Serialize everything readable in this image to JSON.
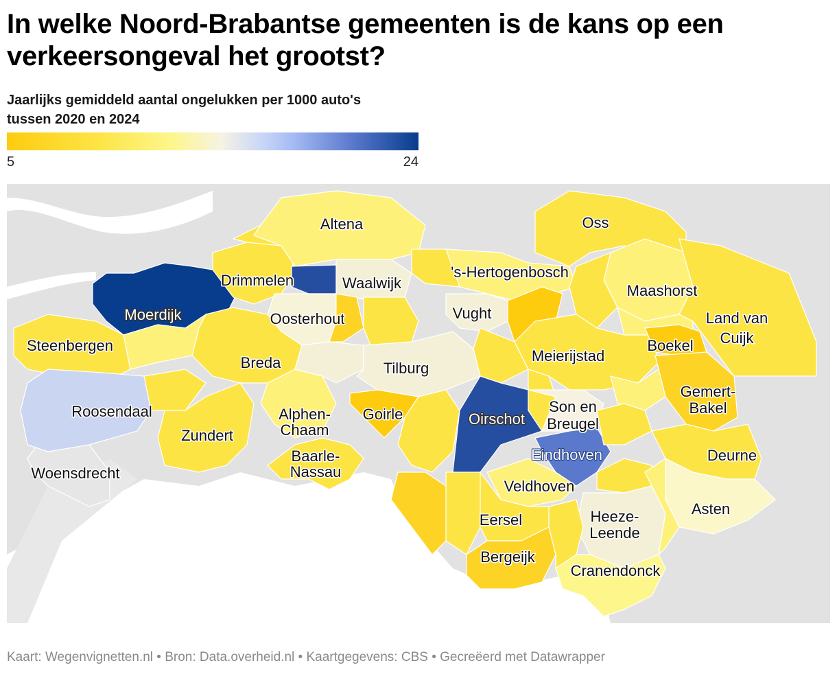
{
  "title": "In welke Noord-Brabantse gemeenten is de kans op een verkeersongeval het grootst?",
  "subtitle_line1": "Jaarlijks gemiddeld aantal ongelukken per 1000 auto's",
  "subtitle_line2": "tussen 2020 en 2024",
  "legend": {
    "min": "5",
    "max": "24"
  },
  "footer": "Kaart: Wegenvignetten.nl • Bron: Data.overheid.nl • Kaartgegevens: CBS • Gecreëerd met Datawrapper",
  "colors": {
    "very_low": "#fdcc0f",
    "low": "#fde445",
    "mid_low": "#fdf68b",
    "neutral": "#f6f3e3",
    "mid_high": "#c9d6f7",
    "high": "#5a78cc",
    "very_high": "#073d8c",
    "background_land": "#e2e2e2"
  },
  "municipalities": {
    "altena": "Altena",
    "drimmelen": "Drimmelen",
    "waalwijk": "Waalwijk",
    "hertogenbosch": "'s-Hertogenbosch",
    "oss": "Oss",
    "moerdijk": "Moerdijk",
    "oosterhout": "Oosterhout",
    "vught": "Vught",
    "maashorst": "Maashorst",
    "land_van_cuijk_1": "Land van",
    "land_van_cuijk_2": "Cuijk",
    "steenbergen": "Steenbergen",
    "breda": "Breda",
    "tilburg": "Tilburg",
    "meierijstad": "Meierijstad",
    "boekel": "Boekel",
    "roosendaal": "Roosendaal",
    "alphen_1": "Alphen-",
    "alphen_2": "Chaam",
    "goirle": "Goirle",
    "oirschot": "Oirschot",
    "son_1": "Son en",
    "son_2": "Breugel",
    "gemert_1": "Gemert-",
    "gemert_2": "Bakel",
    "zundert": "Zundert",
    "eindhoven": "Eindhoven",
    "baarle_1": "Baarle-",
    "baarle_2": "Nassau",
    "deurne": "Deurne",
    "woensdrecht": "Woensdrecht",
    "veldhoven": "Veldhoven",
    "heeze_1": "Heeze-",
    "heeze_2": "Leende",
    "asten": "Asten",
    "eersel": "Eersel",
    "bergeijk": "Bergeijk",
    "cranendonck": "Cranendonck"
  }
}
